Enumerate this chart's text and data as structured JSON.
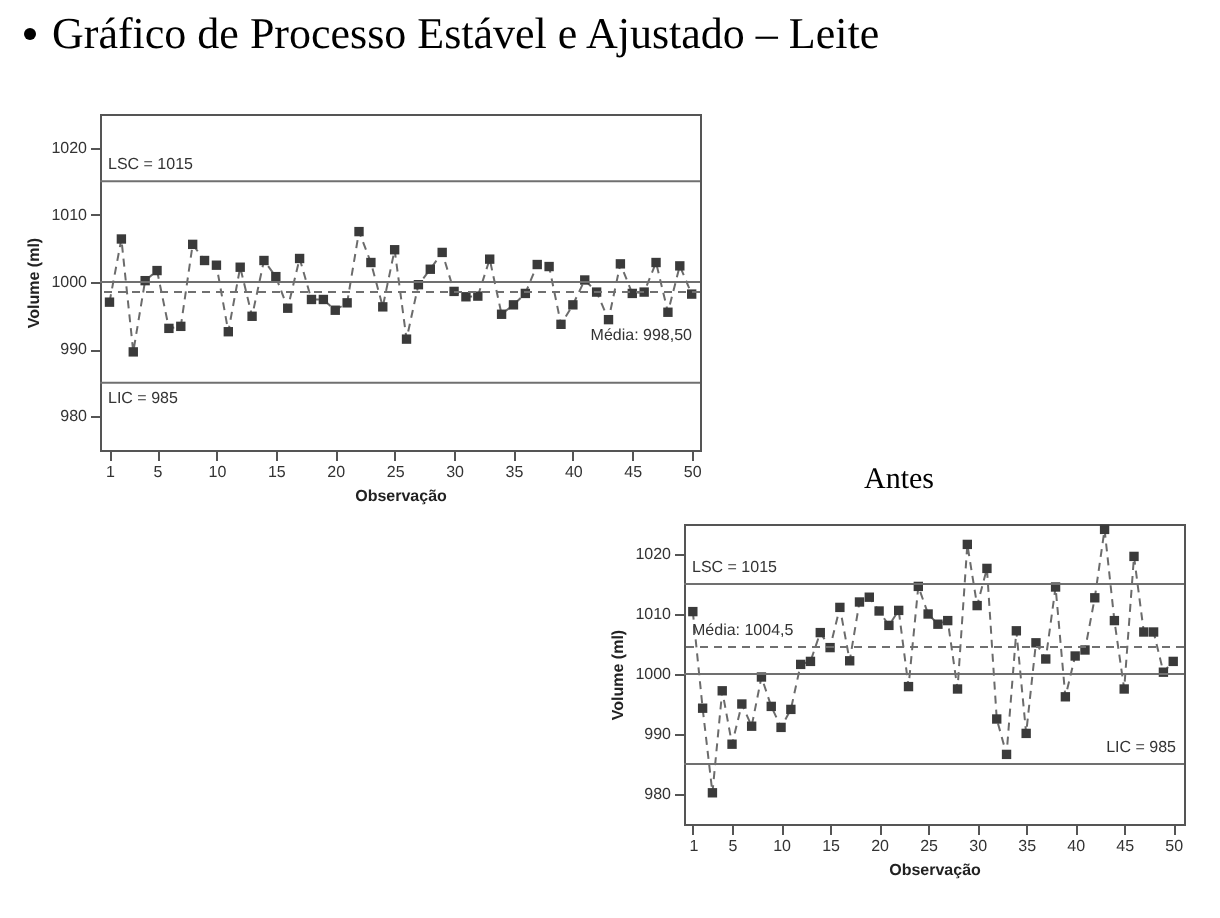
{
  "chart_data": [
    {
      "type": "line",
      "title": "Gráfico de Processo Estável e Ajustado – Leite",
      "xlabel": "Observação",
      "ylabel": "Volume (ml)",
      "marker": "square",
      "line_style": "dashed",
      "grid": false,
      "x": [
        1,
        2,
        3,
        4,
        5,
        6,
        7,
        8,
        9,
        10,
        11,
        12,
        13,
        14,
        15,
        16,
        17,
        18,
        19,
        20,
        21,
        22,
        23,
        24,
        25,
        26,
        27,
        28,
        29,
        30,
        31,
        32,
        33,
        34,
        35,
        36,
        37,
        38,
        39,
        40,
        41,
        42,
        43,
        44,
        45,
        46,
        47,
        48,
        49,
        50
      ],
      "series": [
        {
          "color": "#3a3a3a",
          "values": [
            997.0,
            1006.4,
            989.6,
            1000.2,
            1001.7,
            993.1,
            993.4,
            1005.6,
            1003.2,
            1002.5,
            992.6,
            1002.2,
            994.9,
            1003.2,
            1000.8,
            996.1,
            1003.5,
            997.4,
            997.4,
            995.8,
            996.9,
            1007.5,
            1002.9,
            996.3,
            1004.8,
            991.5,
            999.6,
            1001.9,
            1004.4,
            998.6,
            997.8,
            997.9,
            1003.4,
            995.2,
            996.6,
            998.3,
            1002.6,
            1002.3,
            993.7,
            996.6,
            1000.3,
            998.5,
            994.4,
            1002.7,
            998.3,
            998.5,
            1002.9,
            995.5,
            1002.4,
            998.2
          ]
        }
      ],
      "xlim": [
        0.2,
        50.7
      ],
      "xticks": [
        1,
        5,
        10,
        15,
        20,
        25,
        30,
        35,
        40,
        45,
        50
      ],
      "ylim": [
        975,
        1025
      ],
      "yticks": [
        980,
        990,
        1000,
        1010,
        1020
      ],
      "ref_lines": [
        {
          "axis": "y",
          "value": 1015,
          "color": "#707070",
          "label": "LSC = 1015"
        },
        {
          "axis": "y",
          "value": 985,
          "color": "#707070",
          "label": "LIC = 985"
        },
        {
          "axis": "y",
          "value": 1000,
          "color": "#707070"
        },
        {
          "axis": "y",
          "value": 998.5,
          "color": "#707070",
          "line_style": "dashed",
          "label": "Média: 998,50"
        }
      ]
    },
    {
      "type": "line",
      "title": "Antes",
      "xlabel": "Observação",
      "ylabel": "Volume (ml)",
      "marker": "square",
      "line_style": "dashed",
      "grid": false,
      "x": [
        1,
        2,
        3,
        4,
        5,
        6,
        7,
        8,
        9,
        10,
        11,
        12,
        13,
        14,
        15,
        16,
        17,
        18,
        19,
        20,
        21,
        22,
        23,
        24,
        25,
        26,
        27,
        28,
        29,
        30,
        31,
        32,
        33,
        34,
        35,
        36,
        37,
        38,
        39,
        40,
        41,
        42,
        43,
        44,
        45,
        46,
        47,
        48,
        49,
        50
      ],
      "series": [
        {
          "color": "#3a3a3a",
          "values": [
            1010.4,
            994.3,
            980.2,
            997.2,
            988.3,
            995.0,
            991.3,
            999.5,
            994.6,
            991.1,
            994.1,
            1001.6,
            1002.1,
            1006.9,
            1004.4,
            1011.1,
            1002.2,
            1012.0,
            1012.8,
            1010.5,
            1008.1,
            1010.6,
            997.9,
            1014.6,
            1010.0,
            1008.3,
            1008.9,
            997.5,
            1021.6,
            1011.4,
            1017.6,
            992.5,
            986.6,
            1007.2,
            990.1,
            1005.2,
            1002.5,
            1014.5,
            996.2,
            1003.0,
            1004.0,
            1012.7,
            1024.1,
            1008.9,
            997.5,
            1019.6,
            1007.0,
            1007.0,
            1000.3,
            1002.1
          ]
        }
      ],
      "xlim": [
        0.1,
        51.1
      ],
      "xticks": [
        1,
        5,
        10,
        15,
        20,
        25,
        30,
        35,
        40,
        45,
        50
      ],
      "ylim": [
        975,
        1025
      ],
      "yticks": [
        980,
        990,
        1000,
        1010,
        1020
      ],
      "ref_lines": [
        {
          "axis": "y",
          "value": 1015,
          "color": "#707070",
          "label": "LSC = 1015"
        },
        {
          "axis": "y",
          "value": 985,
          "color": "#707070",
          "label": "LIC = 985"
        },
        {
          "axis": "y",
          "value": 1000,
          "color": "#707070"
        },
        {
          "axis": "y",
          "value": 1004.5,
          "color": "#707070",
          "line_style": "dashed",
          "label": "Média: 1004,5"
        }
      ]
    }
  ]
}
